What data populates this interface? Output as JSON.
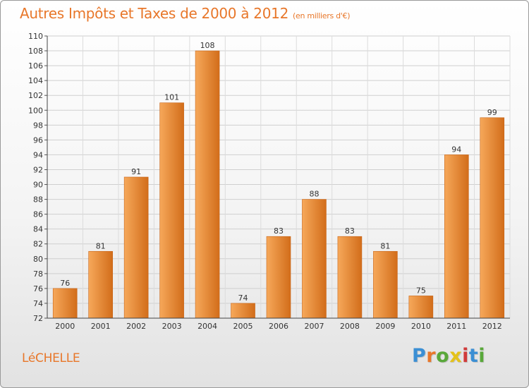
{
  "header": {
    "title": "Autres Impôts et Taxes de 2000 à 2012",
    "subtitle": "(en milliers d'€)"
  },
  "footer": {
    "commune": "LéCHELLE",
    "logo_letters": [
      "P",
      "r",
      "o",
      "x",
      "i",
      "t",
      "i"
    ],
    "logo_colors": [
      "#3b8fd4",
      "#e8772a",
      "#59a83a",
      "#e4c21a",
      "#d13b3b",
      "#3b8fd4",
      "#59a83a"
    ]
  },
  "colors": {
    "bar_light": "#f6a85a",
    "bar_dark": "#d26d1a",
    "accent": "#e8772a"
  },
  "chart_data": {
    "type": "bar",
    "title": "Autres Impôts et Taxes de 2000 à 2012",
    "subtitle": "(en milliers d'€)",
    "xlabel": "",
    "ylabel": "",
    "categories": [
      "2000",
      "2001",
      "2002",
      "2003",
      "2004",
      "2005",
      "2006",
      "2007",
      "2008",
      "2009",
      "2010",
      "2011",
      "2012"
    ],
    "values": [
      76,
      81,
      91,
      101,
      108,
      74,
      83,
      88,
      83,
      81,
      75,
      94,
      99
    ],
    "ylim": [
      72,
      110
    ],
    "yticks": [
      72,
      74,
      76,
      78,
      80,
      82,
      84,
      86,
      88,
      90,
      92,
      94,
      96,
      98,
      100,
      102,
      104,
      106,
      108,
      110
    ],
    "grid": true,
    "legend": "none"
  }
}
